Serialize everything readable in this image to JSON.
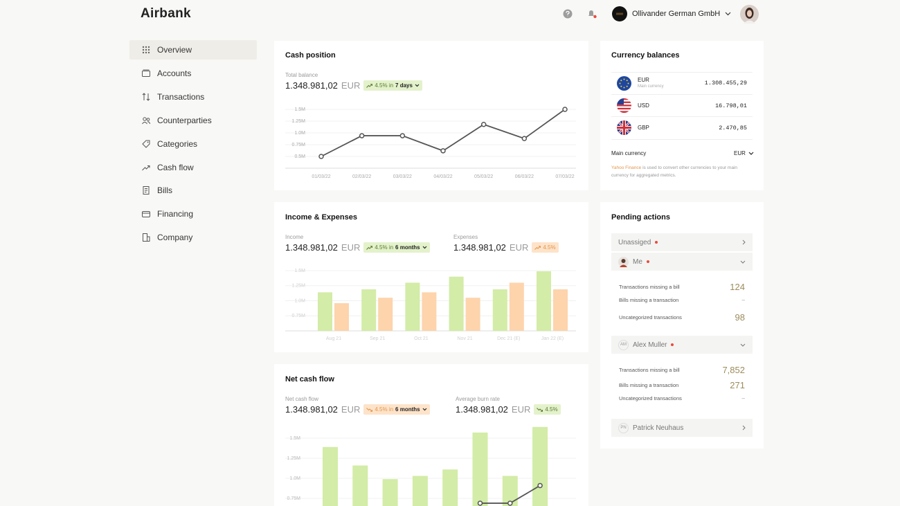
{
  "header": {
    "logo": "Airbank",
    "company": "Ollivander German GmbH"
  },
  "nav": [
    "Overview",
    "Accounts",
    "Transactions",
    "Counterparties",
    "Categories",
    "Cash flow",
    "Bills",
    "Financing",
    "Company"
  ],
  "cash_position": {
    "title": "Cash position",
    "label": "Total balance",
    "amount": "1.348.981,02",
    "currency": "EUR",
    "change": "4.5% in",
    "period": "7 days",
    "chart_data": {
      "type": "line",
      "x": [
        "01/03/22",
        "02/03/22",
        "03/03/22",
        "04/03/22",
        "05/03/22",
        "06/03/22",
        "07/03/22"
      ],
      "values": [
        0.5,
        0.94,
        0.94,
        0.62,
        1.18,
        0.88,
        1.5
      ],
      "color": "#555555",
      "ylim": [
        0.25,
        1.5
      ],
      "yticks": [
        {
          "value": 0.5,
          "label": "0.5M"
        },
        {
          "value": 0.75,
          "label": "0.75M"
        },
        {
          "value": 1,
          "label": "1.0M"
        },
        {
          "value": 1.25,
          "label": "1.25M"
        },
        {
          "value": 1.5,
          "label": "1.5M"
        }
      ],
      "grid": true
    }
  },
  "income_expenses": {
    "title": "Income & Expenses",
    "income": {
      "label": "Income",
      "amount": "1.348.981,02",
      "currency": "EUR",
      "change": "4.5% in",
      "period": "6 months"
    },
    "expenses": {
      "label": "Expenses",
      "amount": "1.348.981,02",
      "currency": "EUR",
      "change": "4.5%"
    },
    "chart_data": {
      "type": "bar",
      "categories": [
        "Aug 21",
        "Sep 21",
        "Oct 21",
        "Nov 21",
        "Dec 21 (E)",
        "Jan 22 (E)"
      ],
      "series": [
        {
          "color": "#d3eca7",
          "values": [
            1.14,
            1.19,
            1.3,
            1.4,
            1.19,
            1.49
          ]
        },
        {
          "color": "#fdd4ac",
          "values": [
            0.96,
            1.05,
            1.14,
            1.05,
            1.3,
            1.19
          ]
        }
      ],
      "ylim": [
        0.5,
        1.5
      ],
      "yticks": [
        {
          "value": 0.75,
          "label": "0.75M"
        },
        {
          "value": 1,
          "label": "1.0M"
        },
        {
          "value": 1.25,
          "label": "1.25M"
        },
        {
          "value": 1.5,
          "label": "1.5M"
        }
      ],
      "grid": true
    }
  },
  "net_cash_flow": {
    "title": "Net cash flow",
    "net": {
      "label": "Net cash flow",
      "amount": "1.348.981,02",
      "currency": "EUR",
      "change": "4.5% in",
      "period": "6 months"
    },
    "burn": {
      "label": "Average burn rate",
      "amount": "1.348.981,02",
      "currency": "EUR",
      "change": "4.5%"
    },
    "chart_data": {
      "type": "bar",
      "categories": [
        null,
        null,
        null,
        null,
        null,
        null,
        null,
        null
      ],
      "series": [
        {
          "color": "#d3eca7",
          "values": [
            1.39,
            1.16,
            0.99,
            1.03,
            1.11,
            1.57,
            1.03,
            1.64
          ]
        },
        {
          "type": "line",
          "color": "#555555",
          "values": [
            null,
            null,
            null,
            null,
            null,
            0.69,
            0.69,
            0.91
          ]
        }
      ],
      "ylim": [
        0.5,
        1.75
      ],
      "yticks": [
        {
          "value": 0.75,
          "label": "0.75M"
        },
        {
          "value": 1,
          "label": "1.0M"
        },
        {
          "value": 1.25,
          "label": "1.25M"
        },
        {
          "value": 1.5,
          "label": "1.5M"
        }
      ],
      "grid": true
    }
  },
  "currency_balances": {
    "title": "Currency balances",
    "rows": [
      {
        "code": "EUR",
        "note": "Main currency",
        "amount": "1.308.455,29"
      },
      {
        "code": "USD",
        "amount": "16.798,01"
      },
      {
        "code": "GBP",
        "amount": "2.470,85"
      }
    ],
    "main_currency_label": "Main currency",
    "main_currency": "EUR",
    "source_link": "Yahoo Finance",
    "source_text": "is used to convert other currencies to your main currency for aggregated metrics."
  },
  "pending_actions": {
    "title": "Pending actions",
    "unassigned": "Unassiged",
    "me": {
      "name": "Me",
      "items": [
        {
          "label": "Transactions missing a bill",
          "count": 124
        },
        {
          "label": "Bills missing a transaction",
          "count": "–"
        },
        {
          "label": "Uncategorized transactions",
          "count": 98
        }
      ]
    },
    "alex": {
      "name": "Alex Muller",
      "initials": "AM",
      "items": [
        {
          "label": "Transactions missing a bill",
          "count": "7,852"
        },
        {
          "label": "Bills missing a transaction",
          "count": 271
        },
        {
          "label": "Uncategorized transactions",
          "count": "–"
        }
      ]
    },
    "patrick": {
      "name": "Patrick Neuhaus",
      "initials": "PN"
    }
  }
}
